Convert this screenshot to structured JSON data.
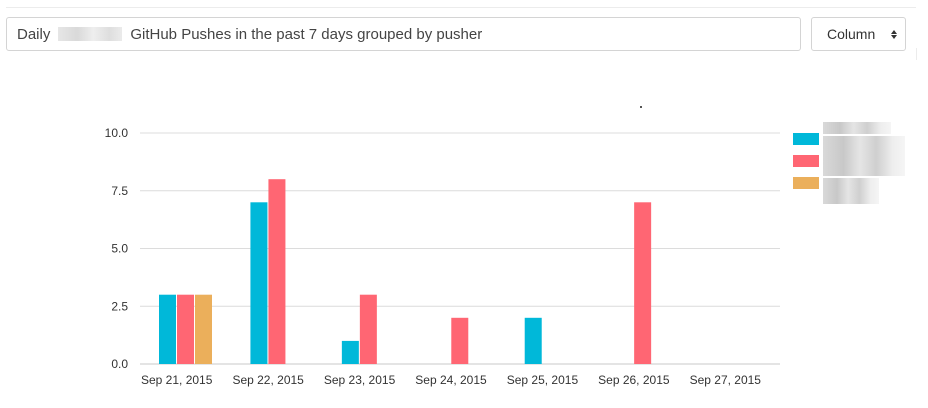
{
  "header": {
    "title_prefix": "Daily",
    "title_suffix": "GitHub Pushes in the past 7 days grouped by pusher",
    "chart_type_select": "Column"
  },
  "colors": {
    "series_1": "#00b8d9",
    "series_2": "#ff6673",
    "series_3": "#ebaf5b",
    "grid": "#dcdcdc",
    "axis_text": "#333333"
  },
  "chart_data": {
    "type": "bar",
    "categories": [
      "Sep 21, 2015",
      "Sep 22, 2015",
      "Sep 23, 2015",
      "Sep 24, 2015",
      "Sep 25, 2015",
      "Sep 26, 2015",
      "Sep 27, 2015"
    ],
    "series": [
      {
        "values": [
          3,
          7,
          1,
          0,
          2,
          0,
          0
        ],
        "color": "#00b8d9"
      },
      {
        "values": [
          3,
          8,
          3,
          2,
          0,
          7,
          0
        ],
        "color": "#ff6673"
      },
      {
        "values": [
          3,
          0,
          0,
          0,
          0,
          0,
          0
        ],
        "color": "#ebaf5b"
      }
    ],
    "yticks": [
      "0.0",
      "2.5",
      "5.0",
      "7.5",
      "10.0"
    ],
    "ylim": [
      0,
      10
    ],
    "grid": true,
    "legend_position": "right"
  }
}
